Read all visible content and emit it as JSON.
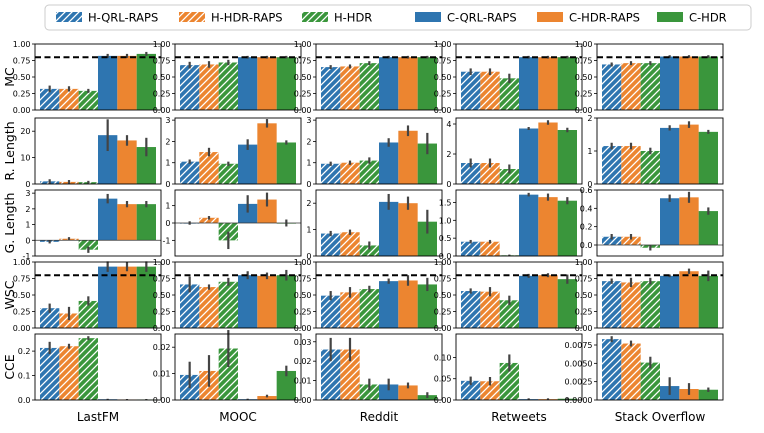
{
  "chart_data": {
    "type": "bar",
    "grid_layout": "5 rows x 5 columns of small bar panels",
    "legend": {
      "placement": "top",
      "entries": [
        {
          "name": "H-QRL-RAPS",
          "color": "#2e75b0",
          "hatch": true
        },
        {
          "name": "H-HDR-RAPS",
          "color": "#ec8530",
          "hatch": true
        },
        {
          "name": "H-HDR",
          "color": "#3a963c",
          "hatch": true
        },
        {
          "name": "C-QRL-RAPS",
          "color": "#2e75b0",
          "hatch": false
        },
        {
          "name": "C-HDR-RAPS",
          "color": "#ec8530",
          "hatch": false
        },
        {
          "name": "C-HDR",
          "color": "#3a963c",
          "hatch": false
        }
      ]
    },
    "datasets": [
      "LastFM",
      "MOOC",
      "Reddit",
      "Retweets",
      "Stack Overflow"
    ],
    "metrics": [
      {
        "name": "MC",
        "reference_line": 0.8,
        "panels": [
          {
            "ylim": [
              0,
              1.0
            ],
            "ticks": [
              "0.00",
              "0.25",
              "0.50",
              "0.75",
              "1.00"
            ],
            "tick_values": [
              0,
              0.25,
              0.5,
              0.75,
              1.0
            ],
            "values": [
              0.32,
              0.32,
              0.29,
              0.82,
              0.82,
              0.85
            ],
            "errors": [
              0.05,
              0.04,
              0.03,
              0.03,
              0.03,
              0.03
            ]
          },
          {
            "ylim": [
              0,
              1.0
            ],
            "ticks": [
              "0.00",
              "0.25",
              "0.50",
              "0.75",
              "1.00"
            ],
            "tick_values": [
              0,
              0.25,
              0.5,
              0.75,
              1.0
            ],
            "values": [
              0.68,
              0.69,
              0.72,
              0.8,
              0.8,
              0.8
            ],
            "errors": [
              0.05,
              0.05,
              0.04,
              0.02,
              0.02,
              0.02
            ]
          },
          {
            "ylim": [
              0,
              1.0
            ],
            "ticks": [
              "0.00",
              "0.25",
              "0.50",
              "0.75",
              "1.00"
            ],
            "tick_values": [
              0,
              0.25,
              0.5,
              0.75,
              1.0
            ],
            "values": [
              0.65,
              0.66,
              0.71,
              0.8,
              0.8,
              0.8
            ],
            "errors": [
              0.03,
              0.03,
              0.03,
              0.02,
              0.02,
              0.02
            ]
          },
          {
            "ylim": [
              0,
              1.0
            ],
            "ticks": [
              "0.00",
              "0.25",
              "0.50",
              "0.75",
              "1.00"
            ],
            "tick_values": [
              0,
              0.25,
              0.5,
              0.75,
              1.0
            ],
            "values": [
              0.58,
              0.58,
              0.48,
              0.8,
              0.8,
              0.8
            ],
            "errors": [
              0.05,
              0.05,
              0.07,
              0.02,
              0.02,
              0.02
            ]
          },
          {
            "ylim": [
              0,
              1.0
            ],
            "ticks": [
              "0.00",
              "0.25",
              "0.50",
              "0.75",
              "1.00"
            ],
            "tick_values": [
              0,
              0.25,
              0.5,
              0.75,
              1.0
            ],
            "values": [
              0.69,
              0.71,
              0.71,
              0.81,
              0.81,
              0.81
            ],
            "errors": [
              0.03,
              0.03,
              0.03,
              0.02,
              0.02,
              0.02
            ]
          }
        ]
      },
      {
        "name": "R. Length",
        "panels": [
          {
            "ylim": [
              0,
              25
            ],
            "ticks": [
              "0",
              "10",
              "20"
            ],
            "tick_values": [
              0,
              10,
              20
            ],
            "values": [
              1.0,
              0.8,
              0.7,
              18.5,
              16.5,
              14.0
            ],
            "errors": [
              0.8,
              0.7,
              0.5,
              6.0,
              2.0,
              3.5
            ]
          },
          {
            "ylim": [
              0,
              3.1
            ],
            "ticks": [
              "0",
              "1",
              "2",
              "3"
            ],
            "tick_values": [
              0,
              1,
              2,
              3
            ],
            "values": [
              1.05,
              1.5,
              0.95,
              1.85,
              2.85,
              1.95
            ],
            "errors": [
              0.1,
              0.2,
              0.1,
              0.25,
              0.2,
              0.1
            ]
          },
          {
            "ylim": [
              0,
              3.1
            ],
            "ticks": [
              "0",
              "1",
              "2",
              "3"
            ],
            "tick_values": [
              0,
              1,
              2,
              3
            ],
            "values": [
              0.95,
              1.0,
              1.1,
              1.95,
              2.5,
              1.9
            ],
            "errors": [
              0.1,
              0.1,
              0.15,
              0.2,
              0.25,
              0.5
            ]
          },
          {
            "ylim": [
              0,
              4.4
            ],
            "ticks": [
              "0",
              "2",
              "4"
            ],
            "tick_values": [
              0,
              2,
              4
            ],
            "values": [
              1.4,
              1.4,
              1.0,
              3.7,
              4.1,
              3.6
            ],
            "errors": [
              0.3,
              0.3,
              0.3,
              0.1,
              0.15,
              0.15
            ]
          },
          {
            "ylim": [
              0,
              2.0
            ],
            "ticks": [
              "0",
              "1",
              "2"
            ],
            "tick_values": [
              0,
              1,
              2
            ],
            "values": [
              1.15,
              1.15,
              1.0,
              1.7,
              1.8,
              1.58
            ],
            "errors": [
              0.1,
              0.1,
              0.1,
              0.08,
              0.1,
              0.06
            ]
          }
        ]
      },
      {
        "name": "G. Length",
        "zero_line": true,
        "panels": [
          {
            "ylim": [
              -1.0,
              3.2
            ],
            "ticks": [
              "-1",
              "0",
              "1",
              "2",
              "3"
            ],
            "tick_values": [
              -1,
              0,
              1,
              2,
              3
            ],
            "values": [
              -0.1,
              0.1,
              -0.6,
              2.65,
              2.3,
              2.3
            ],
            "errors": [
              0.1,
              0.1,
              0.2,
              0.3,
              0.2,
              0.2
            ]
          },
          {
            "ylim": [
              -1.9,
              1.9
            ],
            "ticks": [
              "-1",
              "0",
              "1"
            ],
            "tick_values": [
              -1,
              0,
              1
            ],
            "values": [
              0.0,
              0.3,
              -1.0,
              1.1,
              1.35,
              0.0
            ],
            "errors": [
              0.1,
              0.1,
              0.5,
              0.5,
              0.4,
              0.2
            ]
          },
          {
            "ylim": [
              0,
              2.5
            ],
            "ticks": [
              "0",
              "1",
              "2"
            ],
            "tick_values": [
              0,
              1,
              2
            ],
            "values": [
              0.85,
              0.9,
              0.4,
              2.05,
              2.0,
              1.3
            ],
            "errors": [
              0.1,
              0.1,
              0.15,
              0.3,
              0.25,
              0.45
            ]
          },
          {
            "ylim": [
              0,
              1.85
            ],
            "ticks": [
              "0.0",
              "0.5",
              "1.0",
              "1.5"
            ],
            "tick_values": [
              0,
              0.5,
              1.0,
              1.5
            ],
            "values": [
              0.4,
              0.4,
              0.02,
              1.72,
              1.65,
              1.55
            ],
            "errors": [
              0.05,
              0.05,
              0.02,
              0.05,
              0.1,
              0.1
            ]
          },
          {
            "ylim": [
              -0.12,
              0.6
            ],
            "ticks": [
              "0.0",
              "0.2",
              "0.4",
              "0.6"
            ],
            "tick_values": [
              0,
              0.2,
              0.4,
              0.6
            ],
            "values": [
              0.09,
              0.09,
              -0.03,
              0.51,
              0.52,
              0.37
            ],
            "errors": [
              0.03,
              0.03,
              0.03,
              0.04,
              0.06,
              0.04
            ]
          }
        ]
      },
      {
        "name": "WSC",
        "reference_line": 0.8,
        "panels": [
          {
            "ylim": [
              0,
              1.0
            ],
            "ticks": [
              "0.00",
              "0.25",
              "0.50",
              "0.75",
              "1.00"
            ],
            "tick_values": [
              0,
              0.25,
              0.5,
              0.75,
              1.0
            ],
            "values": [
              0.3,
              0.22,
              0.41,
              0.93,
              0.93,
              0.93
            ],
            "errors": [
              0.07,
              0.1,
              0.07,
              0.08,
              0.07,
              0.08
            ]
          },
          {
            "ylim": [
              0,
              1.0
            ],
            "ticks": [
              "0.00",
              "0.25",
              "0.50",
              "0.75",
              "1.00"
            ],
            "tick_values": [
              0,
              0.25,
              0.5,
              0.75,
              1.0
            ],
            "values": [
              0.66,
              0.62,
              0.7,
              0.8,
              0.79,
              0.8
            ],
            "errors": [
              0.12,
              0.04,
              0.06,
              0.06,
              0.05,
              0.08
            ]
          },
          {
            "ylim": [
              0,
              1.0
            ],
            "ticks": [
              "0.00",
              "0.25",
              "0.50",
              "0.75",
              "1.00"
            ],
            "tick_values": [
              0,
              0.25,
              0.5,
              0.75,
              1.0
            ],
            "values": [
              0.49,
              0.54,
              0.59,
              0.71,
              0.72,
              0.66
            ],
            "errors": [
              0.07,
              0.08,
              0.05,
              0.04,
              0.08,
              0.1
            ]
          },
          {
            "ylim": [
              0,
              1.0
            ],
            "ticks": [
              "0.00",
              "0.25",
              "0.50",
              "0.75",
              "1.00"
            ],
            "tick_values": [
              0,
              0.25,
              0.5,
              0.75,
              1.0
            ],
            "values": [
              0.56,
              0.55,
              0.42,
              0.79,
              0.8,
              0.74
            ],
            "errors": [
              0.04,
              0.07,
              0.07,
              0.03,
              0.03,
              0.07
            ]
          },
          {
            "ylim": [
              0,
              1.0
            ],
            "ticks": [
              "0.00",
              "0.25",
              "0.50",
              "0.75",
              "1.00"
            ],
            "tick_values": [
              0,
              0.25,
              0.5,
              0.75,
              1.0
            ],
            "values": [
              0.71,
              0.69,
              0.71,
              0.79,
              0.86,
              0.79
            ],
            "errors": [
              0.04,
              0.07,
              0.05,
              0.02,
              0.04,
              0.08
            ]
          }
        ]
      },
      {
        "name": "CCE",
        "panels": [
          {
            "ylim": [
              0,
              0.27
            ],
            "ticks": [
              "0.0",
              "0.1",
              "0.2"
            ],
            "tick_values": [
              0,
              0.1,
              0.2
            ],
            "values": [
              0.213,
              0.22,
              0.253,
              0.003,
              0.002,
              0.002
            ],
            "errors": [
              0.025,
              0.01,
              0.008,
              0.002,
              0.002,
              0.002
            ]
          },
          {
            "ylim": [
              0,
              0.025
            ],
            "ticks": [
              "0.00",
              "0.01",
              "0.02"
            ],
            "tick_values": [
              0,
              0.01,
              0.02
            ],
            "values": [
              0.0095,
              0.011,
              0.0195,
              0.0003,
              0.0015,
              0.011
            ],
            "errors": [
              0.005,
              0.006,
              0.007,
              0.0002,
              0.0005,
              0.002
            ]
          },
          {
            "ylim": [
              0,
              0.034
            ],
            "ticks": [
              "0.00",
              "0.01",
              "0.02",
              "0.03"
            ],
            "tick_values": [
              0,
              0.01,
              0.02,
              0.03
            ],
            "values": [
              0.026,
              0.026,
              0.008,
              0.008,
              0.0075,
              0.0025
            ],
            "errors": [
              0.006,
              0.006,
              0.003,
              0.003,
              0.0015,
              0.0015
            ]
          },
          {
            "ylim": [
              0,
              0.155
            ],
            "ticks": [
              "0.00",
              "0.05",
              "0.10"
            ],
            "tick_values": [
              0,
              0.05,
              0.1
            ],
            "values": [
              0.045,
              0.044,
              0.087,
              0.002,
              0.002,
              0.003
            ],
            "errors": [
              0.01,
              0.01,
              0.02,
              0.002,
              0.002,
              0.002
            ]
          },
          {
            "ylim": [
              0,
              0.009
            ],
            "ticks": [
              "0.0000",
              "0.0025",
              "0.0050",
              "0.0075"
            ],
            "tick_values": [
              0,
              0.0025,
              0.005,
              0.0075
            ],
            "values": [
              0.0083,
              0.0077,
              0.0051,
              0.0019,
              0.0015,
              0.0014
            ],
            "errors": [
              0.0004,
              0.0004,
              0.0008,
              0.0012,
              0.0008,
              0.0003
            ]
          }
        ]
      }
    ]
  }
}
